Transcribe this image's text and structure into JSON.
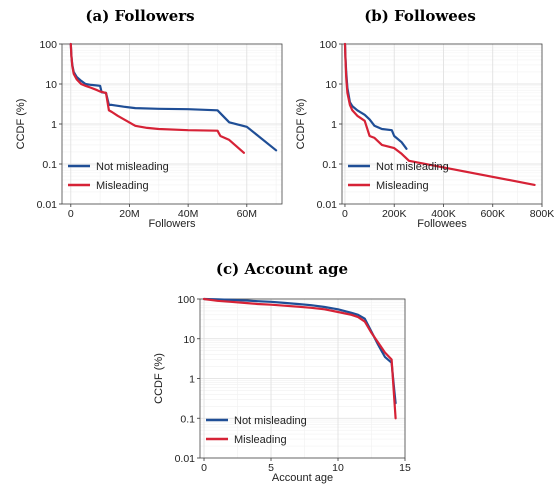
{
  "chart_data": [
    {
      "type": "line",
      "title": "(a) Followers",
      "xlabel": "Followers",
      "ylabel": "CCDF (%)",
      "yscale": "log",
      "xlim": [
        -3000000,
        72000000
      ],
      "ylim": [
        0.01,
        100
      ],
      "x_ticks": [
        0,
        20000000,
        40000000,
        60000000
      ],
      "x_tick_labels": [
        "0",
        "20M",
        "40M",
        "60M"
      ],
      "y_ticks": [
        0.01,
        0.1,
        1,
        10,
        100
      ],
      "y_tick_labels": [
        "0.01",
        "0.1",
        "1",
        "10",
        "100"
      ],
      "grid": true,
      "legend_position": "bottom-left",
      "series": [
        {
          "name": "Not misleading",
          "color": "#1f4e96",
          "x": [
            0,
            200000,
            500000,
            1000000,
            2000000,
            3500000,
            5000000,
            7000000,
            10000000,
            10500000,
            12000000,
            13000000,
            14000000,
            18000000,
            22000000,
            30000000,
            40000000,
            50000000,
            54000000,
            60000000,
            70000000
          ],
          "y": [
            100,
            50,
            30,
            20,
            15,
            12,
            10,
            9.5,
            9,
            6.2,
            6,
            3,
            3,
            2.7,
            2.5,
            2.4,
            2.35,
            2.2,
            1.1,
            0.85,
            0.22
          ]
        },
        {
          "name": "Misleading",
          "color": "#d62236",
          "x": [
            0,
            200000,
            500000,
            1000000,
            2000000,
            3500000,
            5000000,
            7000000,
            9000000,
            10000000,
            12000000,
            13000000,
            14000000,
            16000000,
            19000000,
            22000000,
            26000000,
            30000000,
            40000000,
            50000000,
            51000000,
            54000000,
            59000000
          ],
          "y": [
            100,
            50,
            28,
            18,
            13,
            10,
            9,
            8,
            7,
            6.5,
            6,
            2.2,
            2,
            1.6,
            1.2,
            0.9,
            0.8,
            0.75,
            0.7,
            0.68,
            0.5,
            0.4,
            0.19
          ]
        }
      ]
    },
    {
      "type": "line",
      "title": "(b) Followees",
      "xlabel": "Followees",
      "ylabel": "CCDF (%)",
      "yscale": "log",
      "xlim": [
        -12000,
        800000
      ],
      "ylim": [
        0.01,
        100
      ],
      "x_ticks": [
        0,
        200000,
        400000,
        600000,
        800000
      ],
      "x_tick_labels": [
        "0",
        "200K",
        "400K",
        "600K",
        "800K"
      ],
      "y_ticks": [
        0.01,
        0.1,
        1,
        10,
        100
      ],
      "y_tick_labels": [
        "0.01",
        "0.1",
        "1",
        "10",
        "100"
      ],
      "grid": true,
      "legend_position": "bottom-left",
      "series": [
        {
          "name": "Not misleading",
          "color": "#1f4e96",
          "x": [
            0,
            2000,
            5000,
            10000,
            20000,
            30000,
            50000,
            80000,
            100000,
            120000,
            150000,
            190000,
            200000,
            230000,
            250000
          ],
          "y": [
            100,
            50,
            20,
            8,
            3.5,
            2.8,
            2.2,
            1.7,
            1.3,
            0.9,
            0.75,
            0.7,
            0.5,
            0.35,
            0.24
          ]
        },
        {
          "name": "Misleading",
          "color": "#d62236",
          "x": [
            0,
            2000,
            5000,
            10000,
            20000,
            30000,
            50000,
            80000,
            100000,
            120000,
            150000,
            200000,
            230000,
            260000,
            770000
          ],
          "y": [
            100,
            45,
            15,
            6,
            3,
            2.2,
            1.6,
            1.2,
            0.5,
            0.45,
            0.3,
            0.25,
            0.18,
            0.12,
            0.03
          ]
        }
      ]
    },
    {
      "type": "line",
      "title": "(c) Account age",
      "xlabel": "Account age",
      "ylabel": "CCDF (%)",
      "yscale": "log",
      "xlim": [
        -0.3,
        15
      ],
      "ylim": [
        0.01,
        100
      ],
      "x_ticks": [
        0,
        5,
        10,
        15
      ],
      "x_tick_labels": [
        "0",
        "5",
        "10",
        "15"
      ],
      "y_ticks": [
        0.01,
        0.1,
        1,
        10,
        100
      ],
      "y_tick_labels": [
        "0.01",
        "0.1",
        "1",
        "10",
        "100"
      ],
      "grid": true,
      "legend_position": "bottom-left",
      "series": [
        {
          "name": "Not misleading",
          "color": "#1f4e96",
          "x": [
            0,
            1,
            2,
            3,
            4,
            5,
            6,
            7,
            8,
            9,
            10,
            11,
            11.5,
            12,
            12.5,
            13,
            13.5,
            14,
            14.2,
            14.3
          ],
          "y": [
            100,
            98,
            95,
            92,
            88,
            85,
            80,
            75,
            70,
            63,
            55,
            45,
            40,
            32,
            15,
            7,
            3.5,
            2.5,
            0.5,
            0.24
          ]
        },
        {
          "name": "Misleading",
          "color": "#d62236",
          "x": [
            0,
            1,
            2,
            3,
            4,
            5,
            6,
            7,
            8,
            9,
            10,
            11,
            11.5,
            12,
            12.5,
            13,
            13.5,
            14,
            14.2,
            14.3
          ],
          "y": [
            100,
            90,
            85,
            80,
            75,
            72,
            68,
            64,
            60,
            55,
            47,
            40,
            35,
            27,
            14,
            8,
            4.5,
            3,
            0.3,
            0.1
          ]
        }
      ]
    }
  ]
}
